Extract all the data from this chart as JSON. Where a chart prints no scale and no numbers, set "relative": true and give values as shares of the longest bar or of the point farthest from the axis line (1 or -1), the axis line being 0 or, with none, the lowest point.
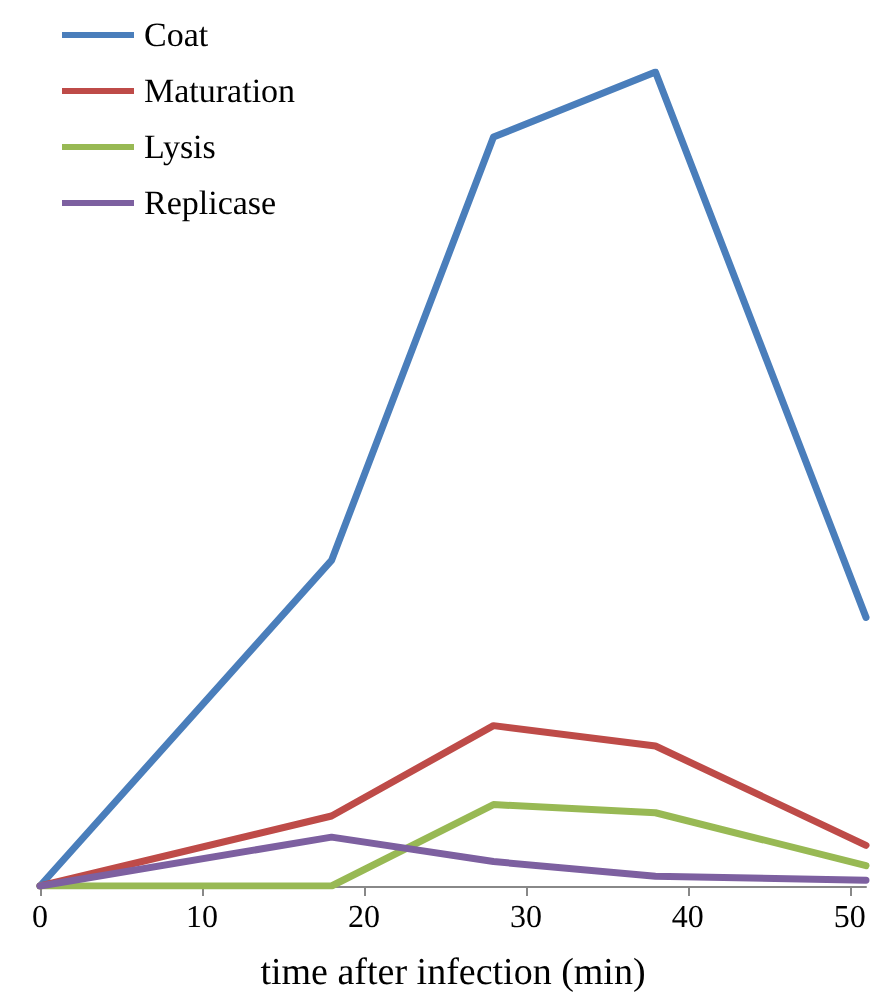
{
  "chart_data": {
    "type": "line",
    "relative": true,
    "xlabel": "time after infection (min)",
    "x": [
      0,
      18,
      28,
      38,
      51
    ],
    "xlim": [
      0,
      51
    ],
    "xticks": [
      0,
      10,
      20,
      30,
      40,
      50
    ],
    "legend": "top left",
    "grid": false,
    "marker": "none",
    "line_style": "solid",
    "series": [
      {
        "name": "Coat",
        "color": "#4a7ebb",
        "values": [
          0,
          0.4,
          0.92,
          1,
          0.33
        ]
      },
      {
        "name": "Maturation",
        "color": "#be4b48",
        "values": [
          0,
          0.086,
          0.197,
          0.172,
          0.05
        ]
      },
      {
        "name": "Lysis",
        "color": "#98b954",
        "values": [
          0,
          0,
          0.1,
          0.09,
          0.025
        ]
      },
      {
        "name": "Replicase",
        "color": "#7d60a0",
        "values": [
          0,
          0.06,
          0.03,
          0.012,
          0.007
        ]
      }
    ]
  }
}
